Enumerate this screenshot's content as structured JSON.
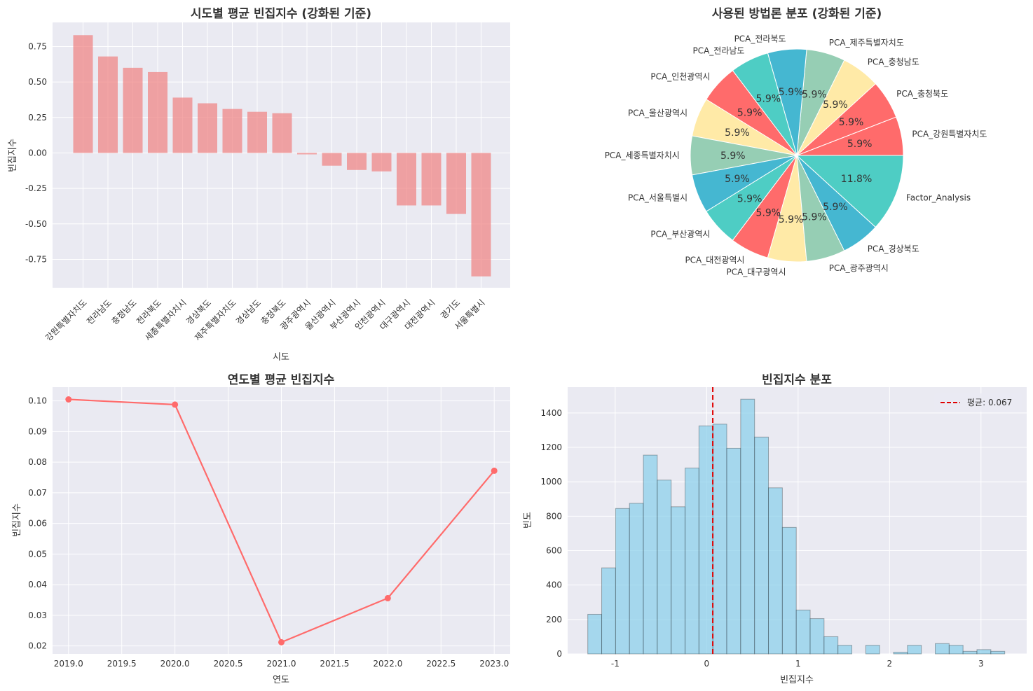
{
  "chart_data": [
    {
      "type": "bar",
      "title": "시도별 평균 빈집지수 (강화된 기준)",
      "xlabel": "시도",
      "ylabel": "빈집지수",
      "categories": [
        "강원특별자치도",
        "전라남도",
        "충청남도",
        "전라북도",
        "세종특별자치시",
        "경상북도",
        "제주특별자치도",
        "경상남도",
        "충청북도",
        "광주광역시",
        "울산광역시",
        "부산광역시",
        "인천광역시",
        "대구광역시",
        "대전광역시",
        "경기도",
        "서울특별시"
      ],
      "values": [
        0.83,
        0.68,
        0.6,
        0.57,
        0.39,
        0.35,
        0.31,
        0.29,
        0.28,
        -0.01,
        -0.09,
        -0.12,
        -0.13,
        -0.37,
        -0.37,
        -0.43,
        -0.87
      ],
      "ylim": [
        -0.95,
        0.92
      ],
      "yticks": [
        -0.75,
        -0.5,
        -0.25,
        0.0,
        0.25,
        0.5,
        0.75
      ],
      "ytick_labels": [
        "-0.75",
        "-0.50",
        "-0.25",
        "0.00",
        "0.25",
        "0.50",
        "0.75"
      ],
      "color": "#f08080",
      "grid": true
    },
    {
      "type": "pie",
      "title": "사용된 방법론 분포 (강화된 기준)",
      "labels": [
        "PCA_강원특별자치도",
        "PCA_충청북도",
        "PCA_충청남도",
        "PCA_제주특별자치도",
        "PCA_전라북도",
        "PCA_전라남도",
        "PCA_인천광역시",
        "PCA_울산광역시",
        "PCA_세종특별자치시",
        "PCA_서울특별시",
        "PCA_부산광역시",
        "PCA_대전광역시",
        "PCA_대구광역시",
        "PCA_광주광역시",
        "PCA_경상북도",
        "Factor_Analysis"
      ],
      "values": [
        1,
        1,
        1,
        1,
        1,
        1,
        1,
        1,
        1,
        1,
        1,
        1,
        1,
        1,
        1,
        2
      ],
      "pct_labels": [
        "5.9%",
        "5.9%",
        "5.9%",
        "5.9%",
        "5.9%",
        "5.9%",
        "5.9%",
        "5.9%",
        "5.9%",
        "5.9%",
        "5.9%",
        "5.9%",
        "5.9%",
        "5.9%",
        "5.9%",
        "11.8%"
      ],
      "colors": [
        "#ff6b6b",
        "#ff6b6b",
        "#ffeaa7",
        "#96ceb4",
        "#45b7d1",
        "#4ecdc4",
        "#ff6b6b",
        "#ffeaa7",
        "#96ceb4",
        "#45b7d1",
        "#4ecdc4",
        "#ff6b6b",
        "#ffeaa7",
        "#96ceb4",
        "#45b7d1",
        "#4ecdc4"
      ]
    },
    {
      "type": "line",
      "title": "연도별 평균 빈집지수",
      "xlabel": "연도",
      "ylabel": "빈집지수",
      "x": [
        2019,
        2020,
        2021,
        2022,
        2023
      ],
      "y": [
        0.1005,
        0.0988,
        0.0212,
        0.0356,
        0.0772
      ],
      "xlim": [
        2018.85,
        2023.15
      ],
      "ylim": [
        0.0174,
        0.1045
      ],
      "xticks": [
        2019.0,
        2019.5,
        2020.0,
        2020.5,
        2021.0,
        2021.5,
        2022.0,
        2022.5,
        2023.0
      ],
      "xtick_labels": [
        "2019.0",
        "2019.5",
        "2020.0",
        "2020.5",
        "2021.0",
        "2021.5",
        "2022.0",
        "2022.5",
        "2023.0"
      ],
      "yticks": [
        0.02,
        0.03,
        0.04,
        0.05,
        0.06,
        0.07,
        0.08,
        0.09,
        0.1
      ],
      "ytick_labels": [
        "0.02",
        "0.03",
        "0.04",
        "0.05",
        "0.06",
        "0.07",
        "0.08",
        "0.09",
        "0.10"
      ],
      "color": "#ff6b6b",
      "grid": true
    },
    {
      "type": "bar",
      "subtype": "histogram",
      "title": "빈집지수 분포",
      "xlabel": "빈집지수",
      "ylabel": "빈도",
      "bin_start": -1.3,
      "bin_width": 0.152,
      "counts": [
        230,
        500,
        845,
        875,
        1155,
        1010,
        855,
        1080,
        1325,
        1335,
        1195,
        1480,
        1260,
        965,
        735,
        255,
        205,
        100,
        50,
        0,
        50,
        0,
        10,
        50,
        0,
        60,
        50,
        15,
        25,
        15
      ],
      "xlim": [
        -1.52,
        3.5
      ],
      "ylim": [
        0,
        1550
      ],
      "xticks": [
        -1,
        0,
        1,
        2,
        3
      ],
      "xtick_labels": [
        "-1",
        "0",
        "1",
        "2",
        "3"
      ],
      "yticks": [
        0,
        200,
        400,
        600,
        800,
        1000,
        1200,
        1400
      ],
      "ytick_labels": [
        "0",
        "200",
        "400",
        "600",
        "800",
        "1000",
        "1200",
        "1400"
      ],
      "mean": 0.067,
      "legend": "평균: 0.067",
      "legend_position": "top-right",
      "color": "#87ceeb",
      "mean_color": "#e00000",
      "grid": true
    }
  ]
}
